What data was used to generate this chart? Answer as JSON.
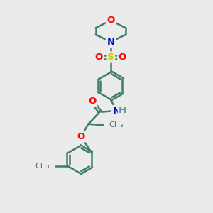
{
  "bg_color": "#ebebeb",
  "bond_color": "#3d7d6e",
  "bond_width": 1.8,
  "atom_colors": {
    "O": "#ff0000",
    "N": "#0000cc",
    "S": "#cccc00",
    "C": "#3d7d6e",
    "H": "#5a9a8a"
  },
  "font_size": 9.5,
  "dbo": 0.055,
  "scale": 1.0
}
